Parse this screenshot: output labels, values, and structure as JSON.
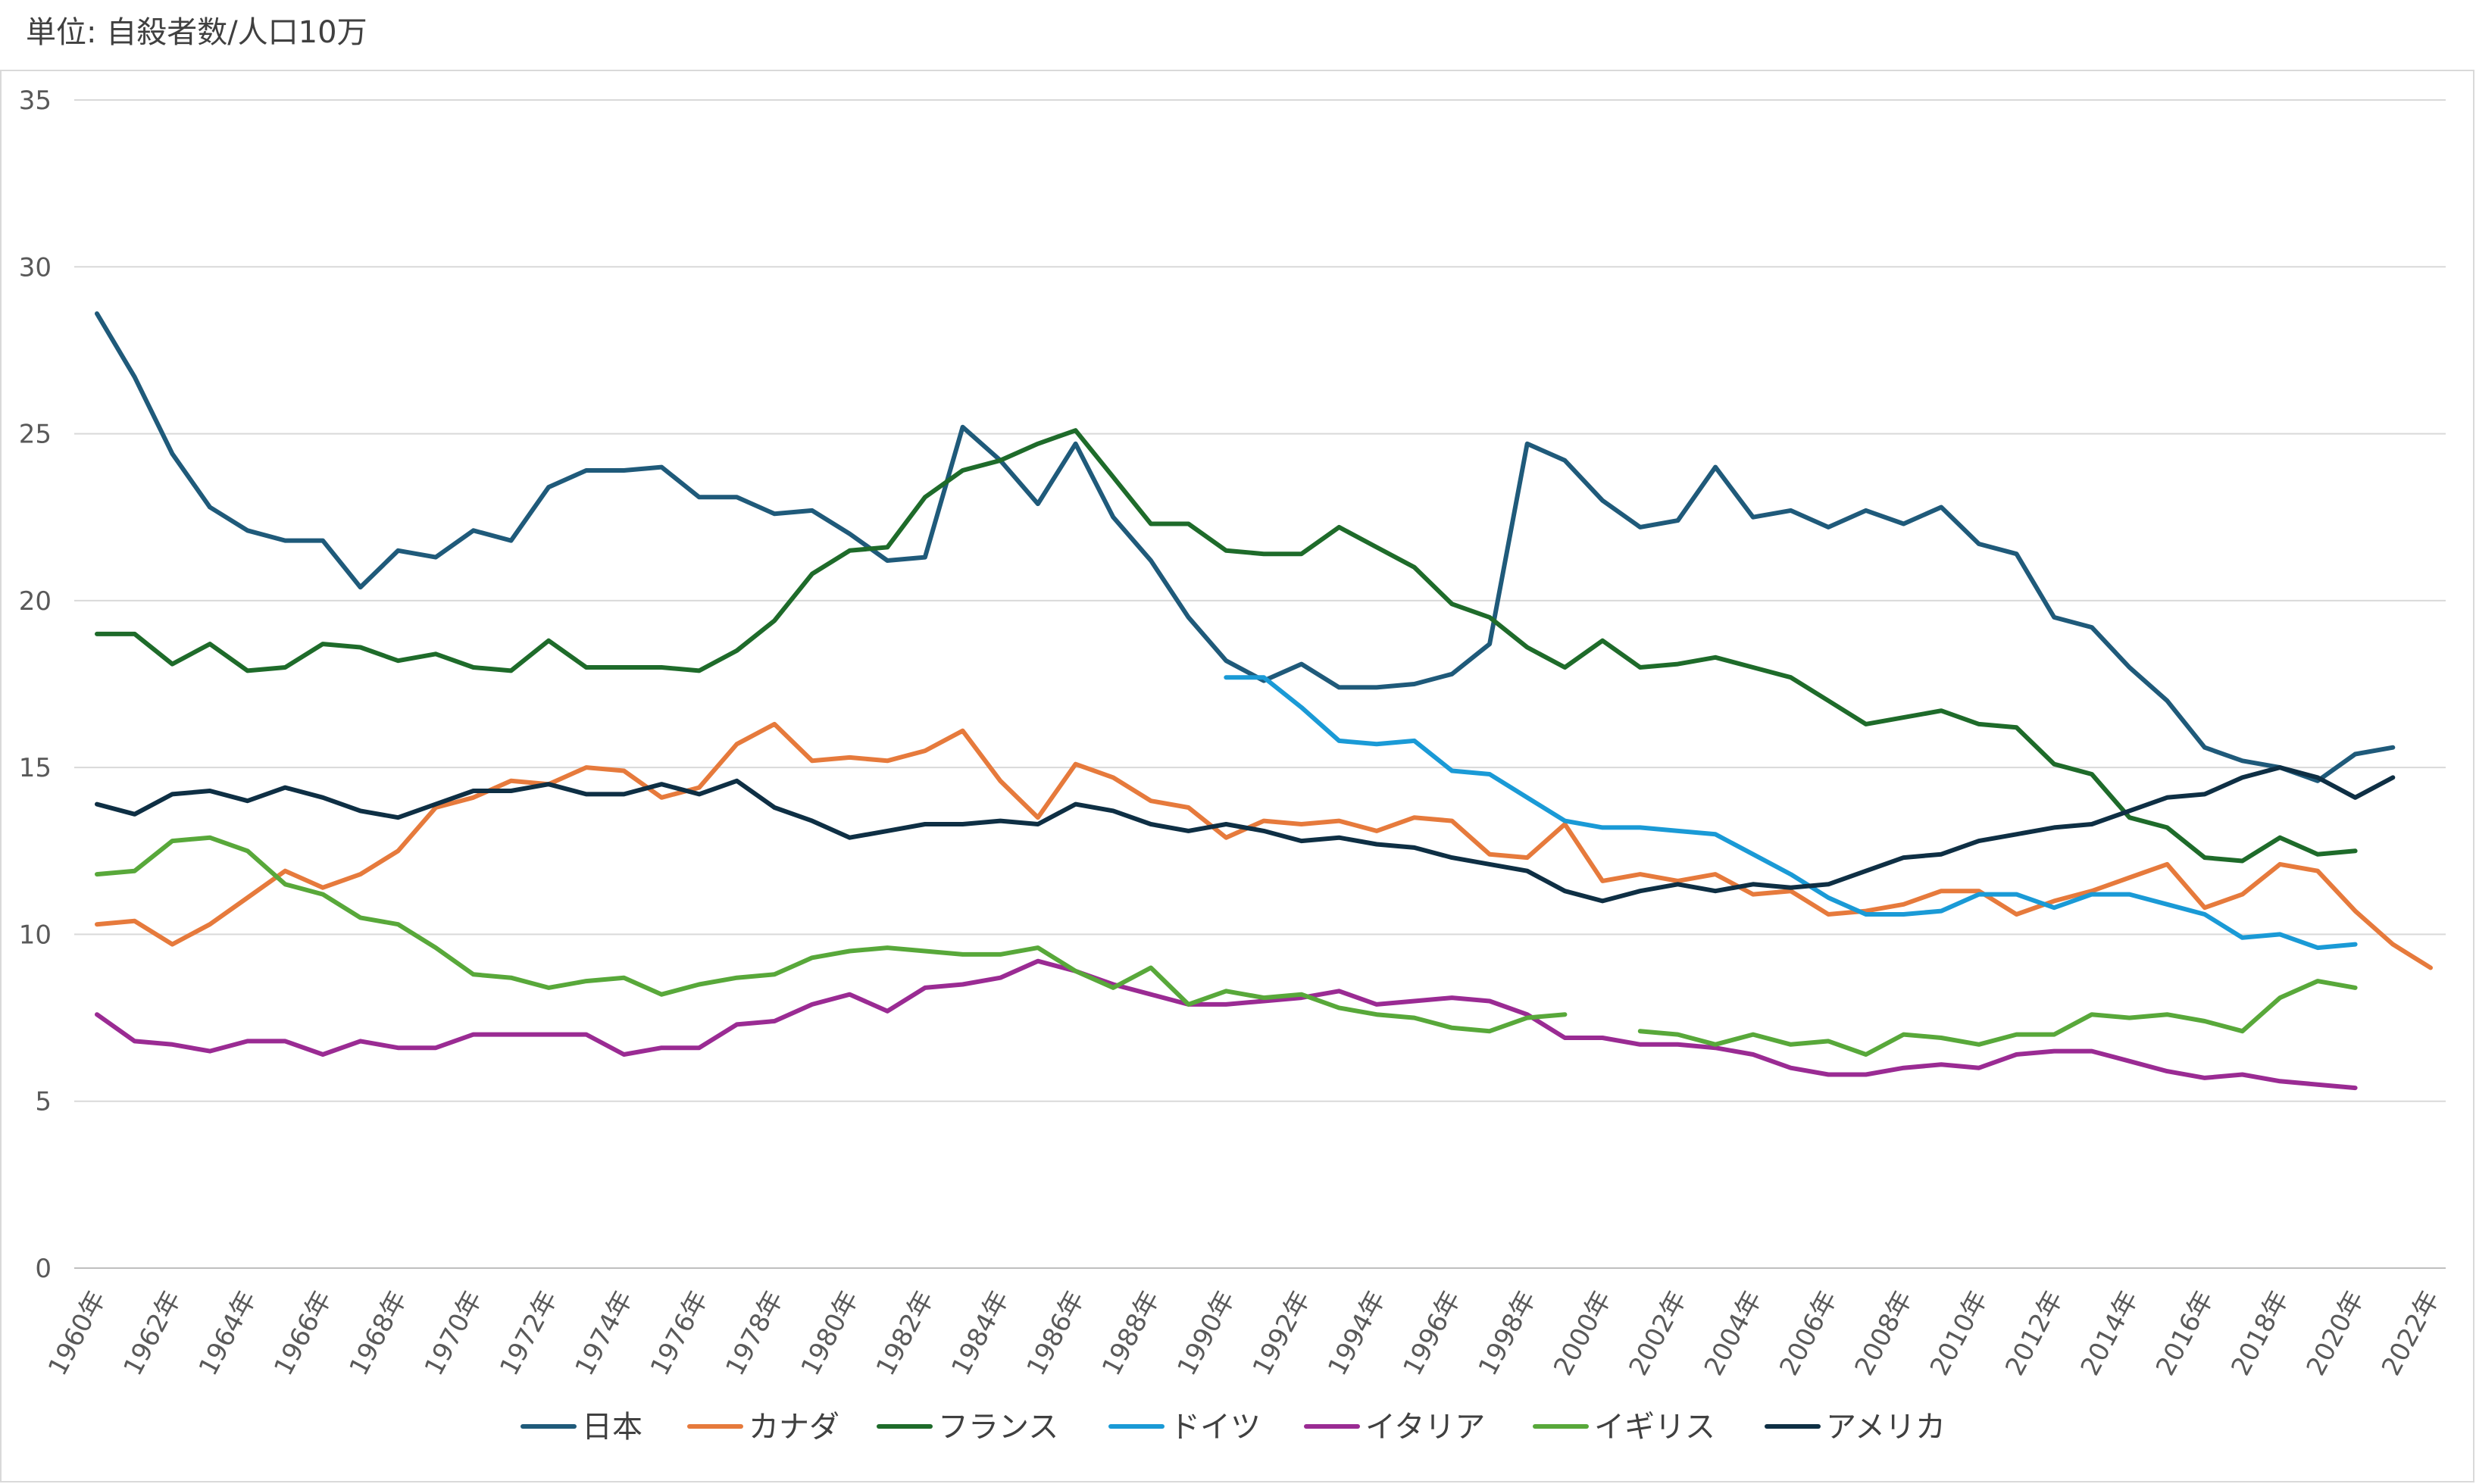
{
  "chart_data": {
    "type": "line",
    "title": "",
    "unit_label": "単位: 自殺者数/人口10万",
    "xlabel": "",
    "ylabel": "",
    "ylim": [
      0,
      35
    ],
    "yticks": [
      0,
      5,
      10,
      15,
      20,
      25,
      30,
      35
    ],
    "grid": true,
    "legend": "bottom",
    "x": [
      1960,
      1961,
      1962,
      1963,
      1964,
      1965,
      1966,
      1967,
      1968,
      1969,
      1970,
      1971,
      1972,
      1973,
      1974,
      1975,
      1976,
      1977,
      1978,
      1979,
      1980,
      1981,
      1982,
      1983,
      1984,
      1985,
      1986,
      1987,
      1988,
      1989,
      1990,
      1991,
      1992,
      1993,
      1994,
      1995,
      1996,
      1997,
      1998,
      1999,
      2000,
      2001,
      2002,
      2003,
      2004,
      2005,
      2006,
      2007,
      2008,
      2009,
      2010,
      2011,
      2012,
      2013,
      2014,
      2015,
      2016,
      2017,
      2018,
      2019,
      2020,
      2021,
      2022
    ],
    "xtick_labels": [
      "1960年",
      "1962年",
      "1964年",
      "1966年",
      "1968年",
      "1970年",
      "1972年",
      "1974年",
      "1976年",
      "1978年",
      "1980年",
      "1982年",
      "1984年",
      "1986年",
      "1988年",
      "1990年",
      "1992年",
      "1994年",
      "1996年",
      "1998年",
      "2000年",
      "2002年",
      "2004年",
      "2006年",
      "2008年",
      "2010年",
      "2012年",
      "2014年",
      "2016年",
      "2018年",
      "2020年",
      "2022年"
    ],
    "series": [
      {
        "name": "日本",
        "color": "#1f5a7a",
        "values": [
          28.6,
          26.7,
          24.4,
          22.8,
          22.1,
          21.8,
          21.8,
          20.4,
          21.5,
          21.3,
          22.1,
          21.8,
          23.4,
          23.9,
          23.9,
          24.0,
          23.1,
          23.1,
          22.6,
          22.7,
          22.0,
          21.2,
          21.3,
          25.2,
          24.2,
          22.9,
          24.7,
          22.5,
          21.2,
          19.5,
          18.2,
          17.6,
          18.1,
          17.4,
          17.4,
          17.5,
          17.8,
          18.7,
          24.7,
          24.2,
          23.0,
          22.2,
          22.4,
          24.0,
          22.5,
          22.7,
          22.2,
          22.7,
          22.3,
          22.8,
          21.7,
          21.4,
          19.5,
          19.2,
          18.0,
          17.0,
          15.6,
          15.2,
          15.0,
          14.6,
          15.4,
          15.6,
          null
        ]
      },
      {
        "name": "カナダ",
        "color": "#e67a3c",
        "values": [
          10.3,
          10.4,
          9.7,
          10.3,
          11.1,
          11.9,
          11.4,
          11.8,
          12.5,
          13.8,
          14.1,
          14.6,
          14.5,
          15.0,
          14.9,
          14.1,
          14.4,
          15.7,
          16.3,
          15.2,
          15.3,
          15.2,
          15.5,
          16.1,
          14.6,
          13.5,
          15.1,
          14.7,
          14.0,
          13.8,
          12.9,
          13.4,
          13.3,
          13.4,
          13.1,
          13.5,
          13.4,
          12.4,
          12.3,
          13.3,
          11.6,
          11.8,
          11.6,
          11.8,
          11.2,
          11.3,
          10.6,
          10.7,
          10.9,
          11.3,
          11.3,
          10.6,
          11.0,
          11.3,
          11.7,
          12.1,
          10.8,
          11.2,
          12.1,
          11.9,
          10.7,
          9.7,
          9.0
        ]
      },
      {
        "name": "フランス",
        "color": "#1e6b2a",
        "values": [
          19.0,
          19.0,
          18.1,
          18.7,
          17.9,
          18.0,
          18.7,
          18.6,
          18.2,
          18.4,
          18.0,
          17.9,
          18.8,
          18.0,
          18.0,
          18.0,
          17.9,
          18.5,
          19.4,
          20.8,
          21.5,
          21.6,
          23.1,
          23.9,
          24.2,
          24.7,
          25.1,
          23.7,
          22.3,
          22.3,
          21.5,
          21.4,
          21.4,
          22.2,
          21.6,
          21.0,
          19.9,
          19.5,
          18.6,
          18.0,
          18.8,
          18.0,
          18.1,
          18.3,
          18.0,
          17.7,
          17.0,
          16.3,
          16.5,
          16.7,
          16.3,
          16.2,
          15.1,
          14.8,
          13.5,
          13.2,
          12.3,
          12.2,
          12.9,
          12.4,
          12.5,
          null,
          null
        ]
      },
      {
        "name": "ドイツ",
        "color": "#1a9ad6",
        "values": [
          null,
          null,
          null,
          null,
          null,
          null,
          null,
          null,
          null,
          null,
          null,
          null,
          null,
          null,
          null,
          null,
          null,
          null,
          null,
          null,
          null,
          null,
          null,
          null,
          null,
          null,
          null,
          null,
          null,
          null,
          17.7,
          17.7,
          16.8,
          15.8,
          15.7,
          15.8,
          14.9,
          14.8,
          14.1,
          13.4,
          13.2,
          13.2,
          13.1,
          13.0,
          12.4,
          11.8,
          11.1,
          10.6,
          10.6,
          10.7,
          11.2,
          11.2,
          10.8,
          11.2,
          11.2,
          10.9,
          10.6,
          9.9,
          10.0,
          9.6,
          9.7,
          null,
          null
        ]
      },
      {
        "name": "イタリア",
        "color": "#9a2b93",
        "values": [
          7.6,
          6.8,
          6.7,
          6.5,
          6.8,
          6.8,
          6.4,
          6.8,
          6.6,
          6.6,
          7.0,
          7.0,
          7.0,
          7.0,
          6.4,
          6.6,
          6.6,
          7.3,
          7.4,
          7.9,
          8.2,
          7.7,
          8.4,
          8.5,
          8.7,
          9.2,
          8.9,
          8.5,
          8.2,
          7.9,
          7.9,
          8.0,
          8.1,
          8.3,
          7.9,
          8.0,
          8.1,
          8.0,
          7.6,
          6.9,
          6.9,
          6.7,
          6.7,
          6.6,
          6.4,
          6.0,
          5.8,
          5.8,
          6.0,
          6.1,
          6.0,
          6.4,
          6.5,
          6.5,
          6.2,
          5.9,
          5.7,
          5.8,
          5.6,
          5.5,
          5.4,
          null,
          null
        ]
      },
      {
        "name": "イギリス",
        "color": "#58a83a",
        "values": [
          11.8,
          11.9,
          12.8,
          12.9,
          12.5,
          11.5,
          11.2,
          10.5,
          10.3,
          9.6,
          8.8,
          8.7,
          8.4,
          8.6,
          8.7,
          8.2,
          8.5,
          8.7,
          8.8,
          9.3,
          9.5,
          9.6,
          9.5,
          9.4,
          9.4,
          9.6,
          8.9,
          8.4,
          9.0,
          7.9,
          8.3,
          8.1,
          8.2,
          7.8,
          7.6,
          7.5,
          7.2,
          7.1,
          7.5,
          7.6,
          null,
          7.1,
          7.0,
          6.7,
          7.0,
          6.7,
          6.8,
          6.4,
          7.0,
          6.9,
          6.7,
          7.0,
          7.0,
          7.6,
          7.5,
          7.6,
          7.4,
          7.1,
          8.1,
          8.6,
          8.4,
          null,
          null
        ]
      },
      {
        "name": "アメリカ",
        "color": "#0e2f44",
        "values": [
          13.9,
          13.6,
          14.2,
          14.3,
          14.0,
          14.4,
          14.1,
          13.7,
          13.5,
          13.9,
          14.3,
          14.3,
          14.5,
          14.2,
          14.2,
          14.5,
          14.2,
          14.6,
          13.8,
          13.4,
          12.9,
          13.1,
          13.3,
          13.3,
          13.4,
          13.3,
          13.9,
          13.7,
          13.3,
          13.1,
          13.3,
          13.1,
          12.8,
          12.9,
          12.7,
          12.6,
          12.3,
          12.1,
          11.9,
          11.3,
          11.0,
          11.3,
          11.5,
          11.3,
          11.5,
          11.4,
          11.5,
          11.9,
          12.3,
          12.4,
          12.8,
          13.0,
          13.2,
          13.3,
          13.7,
          14.1,
          14.2,
          14.7,
          15.0,
          14.7,
          14.1,
          14.7,
          null
        ]
      }
    ]
  }
}
